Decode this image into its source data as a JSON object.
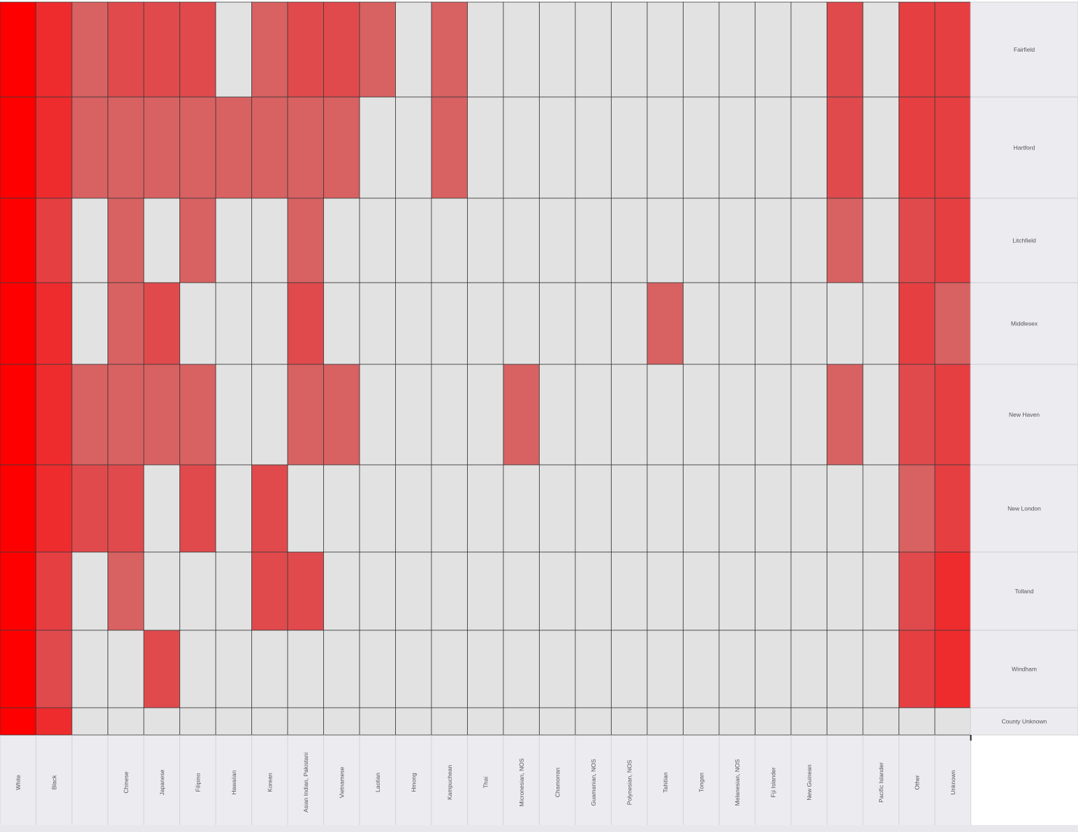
{
  "chart_data": {
    "type": "heatmap",
    "columns": [
      "White",
      "Black",
      "",
      "Chinese",
      "Japanese",
      "Filipino",
      "Hawaiian",
      "Korean",
      "Asian Indian, Pakistani",
      "Vietnamese",
      "Laotian",
      "Hmong",
      "Kampuchean",
      "Thai",
      "Micronesian, NOS",
      "Chamorran",
      "Guamanian, NOS",
      "Polynesian, NOS",
      "Tahitian",
      "Tongan",
      "Melanesian, NOS",
      "Fiji Islander",
      "New Guinean",
      "",
      "Pacific Islander",
      "Other",
      "Unknown"
    ],
    "rows": [
      "Fairfield",
      "Hartford",
      "Litchfield",
      "Middlesex",
      "New Haven",
      "New London",
      "Tolland",
      "Windham",
      "County Unknown"
    ],
    "values": [
      [
        5,
        4,
        1,
        2,
        2,
        2,
        0,
        1,
        2,
        2,
        1,
        0,
        1,
        0,
        0,
        0,
        0,
        0,
        0,
        0,
        0,
        0,
        0,
        2,
        0,
        3,
        3
      ],
      [
        5,
        4,
        1,
        1,
        1,
        1,
        1,
        1,
        1,
        1,
        0,
        0,
        1,
        0,
        0,
        0,
        0,
        0,
        0,
        0,
        0,
        0,
        0,
        2,
        0,
        3,
        3
      ],
      [
        5,
        3,
        0,
        1,
        0,
        1,
        0,
        0,
        1,
        0,
        0,
        0,
        0,
        0,
        0,
        0,
        0,
        0,
        0,
        0,
        0,
        0,
        0,
        1,
        0,
        2,
        3
      ],
      [
        5,
        4,
        0,
        1,
        2,
        0,
        0,
        0,
        2,
        0,
        0,
        0,
        0,
        0,
        0,
        0,
        0,
        0,
        1,
        0,
        0,
        0,
        0,
        0,
        0,
        3,
        1
      ],
      [
        5,
        4,
        1,
        1,
        1,
        1,
        0,
        0,
        1,
        1,
        0,
        0,
        0,
        0,
        1,
        0,
        0,
        0,
        0,
        0,
        0,
        0,
        0,
        1,
        0,
        2,
        3
      ],
      [
        5,
        4,
        2,
        2,
        0,
        2,
        0,
        2,
        0,
        0,
        0,
        0,
        0,
        0,
        0,
        0,
        0,
        0,
        0,
        0,
        0,
        0,
        0,
        0,
        0,
        1,
        3
      ],
      [
        5,
        3,
        0,
        1,
        0,
        0,
        0,
        2,
        2,
        0,
        0,
        0,
        0,
        0,
        0,
        0,
        0,
        0,
        0,
        0,
        0,
        0,
        0,
        0,
        0,
        2,
        4
      ],
      [
        5,
        2,
        0,
        0,
        2,
        0,
        0,
        0,
        0,
        0,
        0,
        0,
        0,
        0,
        0,
        0,
        0,
        0,
        0,
        0,
        0,
        0,
        0,
        0,
        0,
        3,
        4
      ],
      [
        5,
        4,
        0,
        0,
        0,
        0,
        0,
        0,
        0,
        0,
        0,
        0,
        0,
        0,
        0,
        0,
        0,
        0,
        0,
        0,
        0,
        0,
        0,
        0,
        0,
        0,
        0
      ]
    ],
    "value_scale": "intensity 0 (none) to 5 (highest)",
    "colors": {
      "empty": "#e2e2e2",
      "levels": [
        "#e2e2e2",
        "#d86162",
        "#e04a4d",
        "#e63f42",
        "#ee2c2e",
        "#ff0000"
      ],
      "label_cell": "#ececf0",
      "grid": "#3a3a3a"
    },
    "title": "",
    "xlabel": "",
    "ylabel": "",
    "legend": "none",
    "grid": true
  }
}
